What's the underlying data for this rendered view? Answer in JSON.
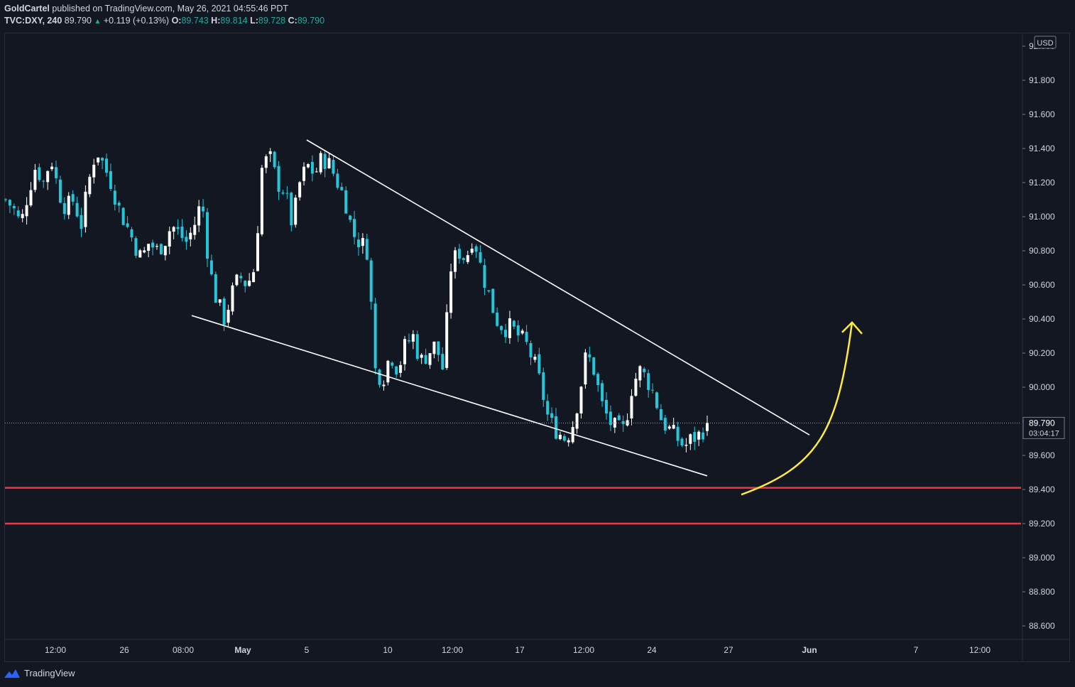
{
  "header": {
    "author": "GoldCartel",
    "published_text": "published on TradingView.com, May 26, 2021 04:55:46 PDT",
    "symbol": "TVC:DXY, 240",
    "last": "89.790",
    "change": "+0.119 (+0.13%)",
    "o_label": "O:",
    "o": "89.743",
    "h_label": "H:",
    "h": "89.814",
    "l_label": "L:",
    "l": "89.728",
    "c_label": "C:",
    "c": "89.790"
  },
  "currency": "USD",
  "price_label": "89.790",
  "countdown_label": "03:04:17",
  "footer": {
    "brand": "TradingView"
  },
  "colors": {
    "background": "#131722",
    "up": "#ffffff",
    "down": "#26c6da",
    "support": "#f23645",
    "arrow": "#ffeb3b",
    "trendline": "#ffffff"
  },
  "chart_data": {
    "type": "candlestick",
    "title": "",
    "xlabel": "",
    "ylabel": "",
    "ylim": [
      88.5,
      92.15
    ],
    "y_ticks": [
      "88.600",
      "88.800",
      "89.000",
      "89.200",
      "89.400",
      "89.600",
      "89.800",
      "90.000",
      "90.200",
      "90.400",
      "90.600",
      "90.800",
      "91.000",
      "91.200",
      "91.400",
      "91.600",
      "91.800",
      "92.000"
    ],
    "x_ticks": [
      "12:00",
      "26",
      "08:00",
      "May",
      "5",
      "10",
      "12:00",
      "17",
      "12:00",
      "24",
      "27",
      "Jun",
      "7",
      "12:00"
    ],
    "bold_x_ticks": [
      "May",
      "Jun"
    ],
    "close_path": [
      91.1,
      91.05,
      90.95,
      91.15,
      91.3,
      91.2,
      91.35,
      91.15,
      91.05,
      91.1,
      90.95,
      91.2,
      91.4,
      91.3,
      91.2,
      91.05,
      90.95,
      90.85,
      90.75,
      90.85,
      90.8,
      90.85,
      90.95,
      90.9,
      90.85,
      90.95,
      91.1,
      90.7,
      90.5,
      90.4,
      90.55,
      90.65,
      90.6,
      90.7,
      91.3,
      91.35,
      91.2,
      91.15,
      90.95,
      91.2,
      91.3,
      91.25,
      91.35,
      91.3,
      91.2,
      91.1,
      90.9,
      90.85,
      90.8,
      90.1,
      90.05,
      90.2,
      90.1,
      90.25,
      90.3,
      90.15,
      90.2,
      90.25,
      90.1,
      90.7,
      90.8,
      90.75,
      90.9,
      90.7,
      90.55,
      90.4,
      90.35,
      90.35,
      90.3,
      90.25,
      90.15,
      90.0,
      89.8,
      89.75,
      89.7,
      89.75,
      89.95,
      90.2,
      90.1,
      89.9,
      89.8,
      89.75,
      89.75,
      90.0,
      90.1,
      90.05,
      89.95,
      89.8,
      89.75,
      89.7,
      89.65,
      89.7,
      89.72,
      89.79
    ],
    "candle_tick_count": 168,
    "last_price": 89.79,
    "support_lines": [
      89.41,
      89.2
    ],
    "trendlines": [
      {
        "name": "upper",
        "from": {
          "x": "May 5",
          "y": 91.45
        },
        "to": {
          "x": "May 28",
          "y": 89.72
        }
      },
      {
        "name": "lower",
        "from": {
          "x": "Apr 27 08:00",
          "y": 90.42
        },
        "to": {
          "x": "May 26",
          "y": 89.48
        }
      }
    ],
    "arrow": {
      "from": {
        "x": "May 28",
        "y": 89.37
      },
      "to": {
        "x": "Jun 3",
        "y": 90.38
      }
    },
    "grid": false,
    "legend": "none"
  }
}
